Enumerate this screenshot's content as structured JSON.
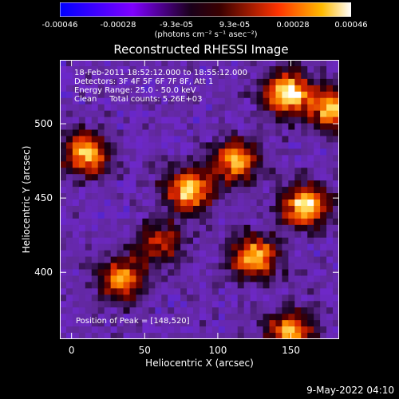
{
  "chart_data": {
    "type": "heatmap",
    "title": "Reconstructed RHESSI Image",
    "xlabel": "Heliocentric X (arcsec)",
    "ylabel": "Heliocentric Y (arcsec)",
    "xlim": [
      -8,
      183
    ],
    "ylim": [
      355,
      543
    ],
    "xticks": [
      0,
      50,
      100,
      150
    ],
    "yticks": [
      400,
      450,
      500
    ],
    "colorbar": {
      "ticks": [
        "-0.00046",
        "-0.00028",
        "-9.3e-05",
        "9.3e-05",
        "0.00028",
        "0.00046"
      ],
      "range": [
        -0.00046,
        0.00046
      ],
      "units": "(photons cm⁻² s⁻¹ asec⁻²)"
    },
    "info_lines": [
      "18-Feb-2011 18:52:12.000 to 18:55:12.000",
      "Detectors: 3F 4F 5F 6F 7F 8F, Att 1",
      "Energy Range: 25.0 - 50.0 keV",
      "Clean     Total counts: 5.26E+03"
    ],
    "peak_label": "Position of Peak = [148,520]",
    "bright_regions": [
      {
        "x": 148,
        "y": 520,
        "level": 1.0
      },
      {
        "x": 160,
        "y": 445,
        "level": 0.95
      },
      {
        "x": 10,
        "y": 480,
        "level": 0.85
      },
      {
        "x": 80,
        "y": 455,
        "level": 0.9
      },
      {
        "x": 112,
        "y": 475,
        "level": 0.8
      },
      {
        "x": 125,
        "y": 410,
        "level": 0.85
      },
      {
        "x": 35,
        "y": 395,
        "level": 0.75
      },
      {
        "x": 180,
        "y": 510,
        "level": 0.85
      },
      {
        "x": 150,
        "y": 360,
        "level": 0.8
      },
      {
        "x": 60,
        "y": 420,
        "level": 0.55
      }
    ]
  },
  "footer_date": "9-May-2022 04:10"
}
